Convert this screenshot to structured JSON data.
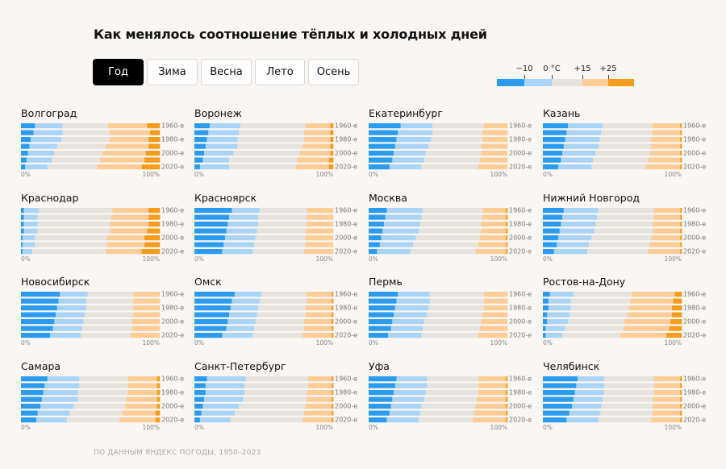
{
  "title": "Как менялось соотношение тёплых и холодных дней",
  "tabs": [
    {
      "label": "Год",
      "active": true
    },
    {
      "label": "Зима",
      "active": false
    },
    {
      "label": "Весна",
      "active": false
    },
    {
      "label": "Лето",
      "active": false
    },
    {
      "label": "Осень",
      "active": false
    }
  ],
  "legend": {
    "labels": [
      "−10",
      "0 °C",
      "+15",
      "+25"
    ],
    "colors": [
      "#2b9bf0",
      "#a9d3f7",
      "#e6e3df",
      "#fdcc97",
      "#f79b1c"
    ]
  },
  "source": "ПО ДАННЫМ ЯНДЕКС ПОГОДЫ, 1950–2023",
  "chart_data": {
    "type": "bar",
    "stacked": true,
    "orientation": "horizontal",
    "xlim": [
      0,
      100
    ],
    "x_tick_labels": [
      "0%",
      "100%"
    ],
    "row_labels": [
      "1960-е",
      "",
      "1980-е",
      "",
      "2000-е",
      "",
      "2020-е"
    ],
    "series_names": [
      "ниже −10",
      "от −10 до 0 °C",
      "от 0 до +15",
      "от +15 до +25",
      "выше +25"
    ],
    "colors": [
      "#2b9bf0",
      "#a9d3f7",
      "#e6e3df",
      "#fdcc97",
      "#f79b1c"
    ],
    "panels": [
      {
        "city": "Волгоград",
        "rows": [
          [
            10,
            20,
            33,
            28,
            9
          ],
          [
            9,
            21,
            34,
            29,
            7
          ],
          [
            7,
            22,
            35,
            28,
            8
          ],
          [
            6,
            20,
            35,
            31,
            8
          ],
          [
            5,
            19,
            35,
            31,
            10
          ],
          [
            4,
            18,
            35,
            32,
            11
          ],
          [
            3,
            16,
            36,
            32,
            13
          ]
        ]
      },
      {
        "city": "Воронеж",
        "rows": [
          [
            11,
            22,
            47,
            18,
            2
          ],
          [
            10,
            22,
            47,
            19,
            2
          ],
          [
            9,
            22,
            48,
            19,
            2
          ],
          [
            8,
            23,
            47,
            20,
            2
          ],
          [
            7,
            21,
            48,
            22,
            2
          ],
          [
            6,
            19,
            49,
            23,
            3
          ],
          [
            4,
            21,
            48,
            24,
            3
          ]
        ]
      },
      {
        "city": "Екатеринбург",
        "rows": [
          [
            23,
            23,
            37,
            17,
            0
          ],
          [
            21,
            25,
            36,
            18,
            0
          ],
          [
            20,
            25,
            37,
            18,
            0
          ],
          [
            19,
            24,
            38,
            19,
            0
          ],
          [
            18,
            23,
            40,
            19,
            0
          ],
          [
            17,
            23,
            40,
            20,
            0
          ],
          [
            15,
            23,
            41,
            21,
            0
          ]
        ]
      },
      {
        "city": "Казань",
        "rows": [
          [
            18,
            25,
            36,
            20,
            1
          ],
          [
            17,
            25,
            37,
            20,
            1
          ],
          [
            16,
            25,
            37,
            21,
            1
          ],
          [
            15,
            25,
            38,
            21,
            1
          ],
          [
            14,
            24,
            39,
            22,
            1
          ],
          [
            13,
            23,
            40,
            23,
            1
          ],
          [
            11,
            24,
            39,
            25,
            1
          ]
        ]
      },
      {
        "city": "Краснодар",
        "rows": [
          [
            2,
            11,
            53,
            26,
            8
          ],
          [
            2,
            10,
            53,
            27,
            8
          ],
          [
            2,
            10,
            52,
            28,
            8
          ],
          [
            2,
            10,
            52,
            27,
            9
          ],
          [
            1,
            9,
            52,
            27,
            11
          ],
          [
            1,
            9,
            52,
            27,
            11
          ],
          [
            1,
            7,
            53,
            26,
            13
          ]
        ]
      },
      {
        "city": "Красноярск",
        "rows": [
          [
            27,
            20,
            34,
            19,
            0
          ],
          [
            25,
            21,
            35,
            19,
            0
          ],
          [
            24,
            22,
            35,
            19,
            0
          ],
          [
            23,
            22,
            35,
            20,
            0
          ],
          [
            22,
            22,
            36,
            20,
            0
          ],
          [
            21,
            22,
            37,
            20,
            0
          ],
          [
            20,
            22,
            37,
            21,
            0
          ]
        ]
      },
      {
        "city": "Москва",
        "rows": [
          [
            13,
            26,
            43,
            17,
            1
          ],
          [
            12,
            26,
            44,
            17,
            1
          ],
          [
            11,
            26,
            44,
            18,
            1
          ],
          [
            10,
            26,
            45,
            18,
            1
          ],
          [
            9,
            25,
            46,
            19,
            1
          ],
          [
            8,
            24,
            47,
            20,
            1
          ],
          [
            6,
            24,
            47,
            22,
            1
          ]
        ]
      },
      {
        "city": "Нижний Новгород",
        "rows": [
          [
            15,
            25,
            40,
            19,
            1
          ],
          [
            14,
            25,
            41,
            19,
            1
          ],
          [
            13,
            25,
            41,
            20,
            1
          ],
          [
            12,
            25,
            42,
            20,
            1
          ],
          [
            11,
            24,
            43,
            21,
            1
          ],
          [
            10,
            23,
            44,
            22,
            1
          ],
          [
            8,
            24,
            44,
            23,
            1
          ]
        ]
      },
      {
        "city": "Новосибирск",
        "rows": [
          [
            28,
            20,
            33,
            19,
            0
          ],
          [
            27,
            20,
            34,
            19,
            0
          ],
          [
            26,
            21,
            34,
            19,
            0
          ],
          [
            25,
            21,
            35,
            19,
            0
          ],
          [
            24,
            21,
            35,
            20,
            0
          ],
          [
            23,
            21,
            36,
            20,
            0
          ],
          [
            21,
            22,
            36,
            21,
            0
          ]
        ]
      },
      {
        "city": "Омск",
        "rows": [
          [
            29,
            19,
            33,
            18,
            1
          ],
          [
            27,
            20,
            34,
            18,
            1
          ],
          [
            26,
            20,
            34,
            19,
            1
          ],
          [
            25,
            20,
            35,
            19,
            1
          ],
          [
            24,
            20,
            35,
            20,
            1
          ],
          [
            23,
            20,
            36,
            20,
            1
          ],
          [
            20,
            22,
            36,
            21,
            1
          ]
        ]
      },
      {
        "city": "Пермь",
        "rows": [
          [
            21,
            23,
            39,
            17,
            0
          ],
          [
            20,
            24,
            39,
            17,
            0
          ],
          [
            19,
            24,
            40,
            17,
            0
          ],
          [
            18,
            24,
            40,
            18,
            0
          ],
          [
            17,
            23,
            41,
            19,
            0
          ],
          [
            16,
            23,
            41,
            20,
            0
          ],
          [
            14,
            24,
            41,
            21,
            0
          ]
        ]
      },
      {
        "city": "Ростов-на-Дону",
        "rows": [
          [
            5,
            17,
            42,
            31,
            5
          ],
          [
            4,
            16,
            43,
            31,
            6
          ],
          [
            4,
            16,
            42,
            31,
            7
          ],
          [
            3,
            16,
            42,
            32,
            7
          ],
          [
            3,
            15,
            41,
            33,
            8
          ],
          [
            2,
            14,
            42,
            33,
            9
          ],
          [
            2,
            12,
            42,
            33,
            11
          ]
        ]
      },
      {
        "city": "Самара",
        "rows": [
          [
            19,
            23,
            35,
            21,
            2
          ],
          [
            17,
            25,
            35,
            21,
            2
          ],
          [
            16,
            25,
            36,
            21,
            2
          ],
          [
            15,
            26,
            35,
            22,
            2
          ],
          [
            14,
            24,
            37,
            23,
            2
          ],
          [
            12,
            23,
            38,
            24,
            3
          ],
          [
            11,
            22,
            38,
            26,
            3
          ]
        ]
      },
      {
        "city": "Санкт-Петербург",
        "rows": [
          [
            9,
            28,
            45,
            17,
            1
          ],
          [
            8,
            28,
            46,
            17,
            1
          ],
          [
            8,
            28,
            45,
            18,
            1
          ],
          [
            7,
            28,
            46,
            18,
            1
          ],
          [
            6,
            26,
            48,
            19,
            1
          ],
          [
            5,
            24,
            50,
            20,
            1
          ],
          [
            4,
            22,
            52,
            21,
            1
          ]
        ]
      },
      {
        "city": "Уфа",
        "rows": [
          [
            20,
            22,
            37,
            20,
            1
          ],
          [
            19,
            23,
            37,
            20,
            1
          ],
          [
            18,
            23,
            38,
            20,
            1
          ],
          [
            17,
            23,
            38,
            21,
            1
          ],
          [
            16,
            22,
            39,
            22,
            1
          ],
          [
            15,
            22,
            39,
            23,
            1
          ],
          [
            13,
            23,
            39,
            24,
            1
          ]
        ]
      },
      {
        "city": "Челябинск",
        "rows": [
          [
            25,
            19,
            36,
            19,
            1
          ],
          [
            24,
            20,
            36,
            19,
            1
          ],
          [
            23,
            21,
            36,
            19,
            1
          ],
          [
            22,
            21,
            36,
            20,
            1
          ],
          [
            21,
            21,
            37,
            20,
            1
          ],
          [
            19,
            22,
            38,
            20,
            1
          ],
          [
            17,
            23,
            38,
            21,
            1
          ]
        ]
      }
    ]
  }
}
